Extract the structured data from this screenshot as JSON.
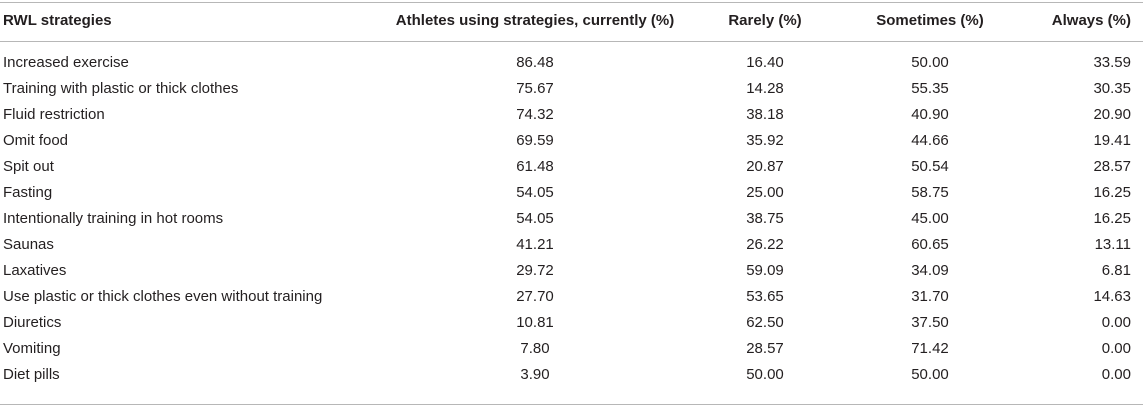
{
  "table": {
    "headers": [
      "RWL strategies",
      "Athletes using strategies, currently (%)",
      "Rarely (%)",
      "Sometimes (%)",
      "Always (%)"
    ],
    "rows": [
      [
        "Increased exercise",
        "86.48",
        "16.40",
        "50.00",
        "33.59"
      ],
      [
        "Training with plastic or thick clothes",
        "75.67",
        "14.28",
        "55.35",
        "30.35"
      ],
      [
        "Fluid restriction",
        "74.32",
        "38.18",
        "40.90",
        "20.90"
      ],
      [
        "Omit food",
        "69.59",
        "35.92",
        "44.66",
        "19.41"
      ],
      [
        "Spit out",
        "61.48",
        "20.87",
        "50.54",
        "28.57"
      ],
      [
        "Fasting",
        "54.05",
        "25.00",
        "58.75",
        "16.25"
      ],
      [
        "Intentionally training in hot rooms",
        "54.05",
        "38.75",
        "45.00",
        "16.25"
      ],
      [
        "Saunas",
        "41.21",
        "26.22",
        "60.65",
        "13.11"
      ],
      [
        "Laxatives",
        "29.72",
        "59.09",
        "34.09",
        "6.81"
      ],
      [
        "Use plastic or thick clothes even without training",
        "27.70",
        "53.65",
        "31.70",
        "14.63"
      ],
      [
        "Diuretics",
        "10.81",
        "62.50",
        "37.50",
        "0.00"
      ],
      [
        "Vomiting",
        "7.80",
        "28.57",
        "71.42",
        "0.00"
      ],
      [
        "Diet pills",
        "3.90",
        "50.00",
        "50.00",
        "0.00"
      ]
    ]
  }
}
